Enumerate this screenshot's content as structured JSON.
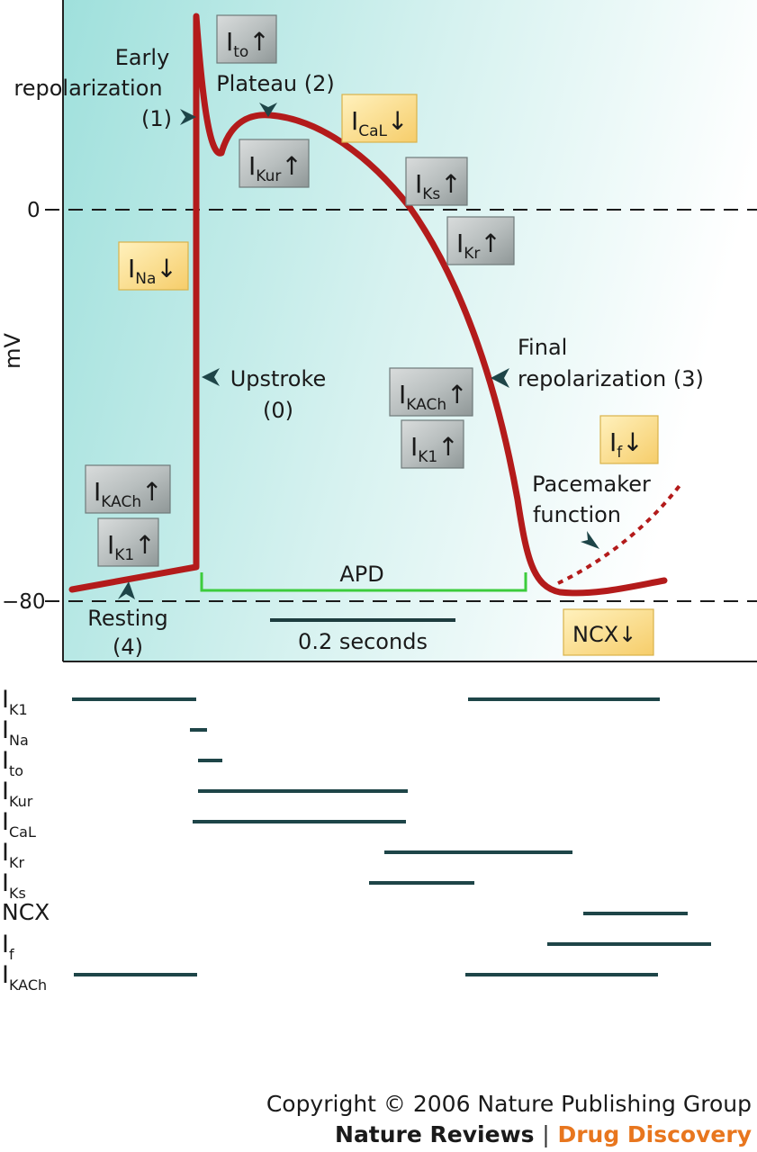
{
  "axes": {
    "ylabel": "mV",
    "ytick_zero": "0",
    "ytick_minus80": "−80"
  },
  "phases": {
    "early_repol_1": "Early",
    "early_repol_2": "repolarization",
    "early_repol_3": "(1)",
    "plateau": "Plateau (2)",
    "upstroke_1": "Upstroke",
    "upstroke_2": "(0)",
    "final_1": "Final",
    "final_2": "repolarization (3)",
    "pacemaker_1": "Pacemaker",
    "pacemaker_2": "function",
    "resting_1": "Resting",
    "resting_2": "(4)",
    "apd": "APD",
    "scale": "0.2 seconds"
  },
  "arrow_up": "↑",
  "arrow_down": "↓",
  "current_boxes": [
    {
      "main": "I",
      "sub": "to",
      "arrow": "↑",
      "color": "grey"
    },
    {
      "main": "I",
      "sub": "CaL",
      "arrow": "↓",
      "color": "yellow"
    },
    {
      "main": "I",
      "sub": "Kur",
      "arrow": "↑",
      "color": "grey"
    },
    {
      "main": "I",
      "sub": "Ks",
      "arrow": "↑",
      "color": "grey"
    },
    {
      "main": "I",
      "sub": "Kr",
      "arrow": "↑",
      "color": "grey"
    },
    {
      "main": "I",
      "sub": "Na",
      "arrow": "↓",
      "color": "yellow"
    },
    {
      "main": "I",
      "sub": "KACh",
      "arrow": "↑",
      "color": "grey"
    },
    {
      "main": "I",
      "sub": "K1",
      "arrow": "↑",
      "color": "grey"
    },
    {
      "main": "I",
      "sub": "f",
      "arrow": "↓",
      "color": "yellow"
    },
    {
      "main": "I",
      "sub": "KACh",
      "arrow": "↑",
      "color": "grey"
    },
    {
      "main": "I",
      "sub": "K1",
      "arrow": "↑",
      "color": "grey"
    },
    {
      "main": "NCX",
      "sub": "",
      "arrow": "↓",
      "color": "yellow"
    }
  ],
  "timeline_rows": [
    {
      "main": "I",
      "sub": "K1"
    },
    {
      "main": "I",
      "sub": "Na"
    },
    {
      "main": "I",
      "sub": "to"
    },
    {
      "main": "I",
      "sub": "Kur"
    },
    {
      "main": "I",
      "sub": "CaL"
    },
    {
      "main": "I",
      "sub": "Kr"
    },
    {
      "main": "I",
      "sub": "Ks"
    },
    {
      "main": "NCX",
      "sub": ""
    },
    {
      "main": "I",
      "sub": "f"
    },
    {
      "main": "I",
      "sub": "KACh"
    }
  ],
  "colors": {
    "ap_trace": "#b31b1b",
    "apd_bar": "#3ccc3c",
    "timeline": "#1e4548",
    "accent_orange": "#e8761e",
    "panel_bg_start": "#9fe0dc",
    "panel_bg_end": "#ffffff"
  },
  "copyright": "Copyright © 2006 Nature Publishing Group",
  "journal": {
    "name": "Nature Reviews",
    "separator": "|",
    "section": "Drug Discovery"
  }
}
